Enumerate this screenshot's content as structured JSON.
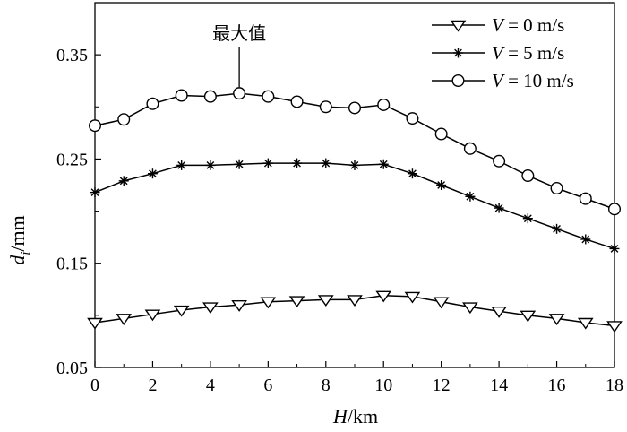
{
  "chart_data": {
    "type": "line",
    "x_axis": {
      "var": "H",
      "unit": "/km",
      "range": [
        0,
        18
      ],
      "ticks": [
        0,
        2,
        4,
        6,
        8,
        10,
        12,
        14,
        16,
        18
      ]
    },
    "y_axis": {
      "var": "d",
      "sub": "i",
      "unit": "/mm",
      "range": [
        0.05,
        0.4
      ],
      "ticks": [
        0.05,
        0.15,
        0.25,
        0.35
      ],
      "tick_labels": [
        "0.05",
        "0.15",
        "0.25",
        "0.35"
      ]
    },
    "x": [
      0,
      1,
      2,
      3,
      4,
      5,
      6,
      7,
      8,
      9,
      10,
      11,
      12,
      13,
      14,
      15,
      16,
      17,
      18
    ],
    "series": [
      {
        "name": "V = 0 m/s",
        "var": "V",
        "rest": " = 0 m/s",
        "marker": "triangle-down",
        "values": [
          0.093,
          0.097,
          0.101,
          0.105,
          0.108,
          0.11,
          0.113,
          0.114,
          0.115,
          0.115,
          0.119,
          0.118,
          0.113,
          0.108,
          0.104,
          0.1,
          0.097,
          0.093,
          0.09
        ]
      },
      {
        "name": "V = 5 m/s",
        "var": "V",
        "rest": " = 5 m/s",
        "marker": "asterisk",
        "values": [
          0.218,
          0.229,
          0.236,
          0.244,
          0.244,
          0.245,
          0.246,
          0.246,
          0.246,
          0.244,
          0.245,
          0.236,
          0.225,
          0.214,
          0.203,
          0.193,
          0.183,
          0.173,
          0.164
        ]
      },
      {
        "name": "V = 10 m/s",
        "var": "V",
        "rest": " = 10 m/s",
        "marker": "circle",
        "values": [
          0.282,
          0.288,
          0.303,
          0.311,
          0.31,
          0.313,
          0.31,
          0.305,
          0.3,
          0.299,
          0.302,
          0.289,
          0.274,
          0.26,
          0.248,
          0.234,
          0.222,
          0.212,
          0.202
        ]
      }
    ],
    "annotation": {
      "text": "最大值",
      "x": 5,
      "y": 0.313
    },
    "legend": "top-right",
    "grid": false,
    "colors": {
      "line": "#000000",
      "marker_fill": "#ffffff"
    }
  }
}
